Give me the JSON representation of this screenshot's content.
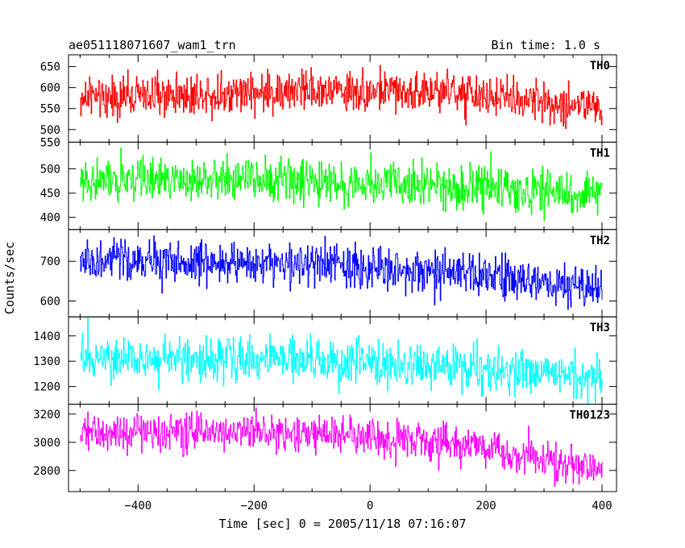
{
  "chart_data": {
    "type": "line",
    "title_left": "ae051118071607_wam1_trn",
    "title_right": "Bin time: 1.0 s",
    "xlabel": "Time [sec] 0 = 2005/11/18 07:16:07",
    "ylabel": "Counts/sec",
    "xlim": [
      -520,
      425
    ],
    "x_ticks": [
      -400,
      -200,
      0,
      200,
      400
    ],
    "x_range": [
      -500,
      400
    ],
    "bin_time": 1.0,
    "grid": false,
    "legend": "none",
    "panels": [
      {
        "label": "TH0",
        "color": "#ff0000",
        "ylim": [
          470,
          678
        ],
        "ticks": [
          650,
          600,
          550,
          500
        ],
        "tick_extra": 550,
        "trend": [
          [
            -500,
            575
          ],
          [
            -300,
            585
          ],
          [
            -100,
            592
          ],
          [
            100,
            590
          ],
          [
            250,
            575
          ],
          [
            400,
            550
          ]
        ],
        "noise_sd": 24,
        "spike_scale": 1.6
      },
      {
        "label": "TH1",
        "color": "#00ff00",
        "ylim": [
          375,
          555
        ],
        "ticks": [
          500,
          450,
          400
        ],
        "trend": [
          [
            -500,
            475
          ],
          [
            -200,
            478
          ],
          [
            0,
            470
          ],
          [
            200,
            460
          ],
          [
            400,
            445
          ]
        ],
        "noise_sd": 22,
        "spike_scale": 1.6
      },
      {
        "label": "TH2",
        "color": "#0000ff",
        "ylim": [
          560,
          780
        ],
        "ticks": [
          700,
          600
        ],
        "trend": [
          [
            -500,
            700
          ],
          [
            -200,
            698
          ],
          [
            0,
            685
          ],
          [
            200,
            660
          ],
          [
            400,
            630
          ]
        ],
        "noise_sd": 26,
        "spike_scale": 1.6
      },
      {
        "label": "TH3",
        "color": "#00ffff",
        "ylim": [
          1130,
          1475
        ],
        "ticks": [
          1400,
          1300,
          1200
        ],
        "trend": [
          [
            -500,
            1305
          ],
          [
            -200,
            1310
          ],
          [
            0,
            1295
          ],
          [
            200,
            1270
          ],
          [
            400,
            1235
          ]
        ],
        "noise_sd": 42,
        "spike_scale": 1.6
      },
      {
        "label": "TH0123",
        "color": "#ff00ff",
        "ylim": [
          2650,
          3270
        ],
        "ticks": [
          3200,
          3000,
          2800
        ],
        "trend": [
          [
            -500,
            3060
          ],
          [
            -200,
            3080
          ],
          [
            0,
            3040
          ],
          [
            200,
            2960
          ],
          [
            300,
            2880
          ],
          [
            400,
            2790
          ]
        ],
        "noise_sd": 65,
        "spike_scale": 1.5
      }
    ]
  }
}
